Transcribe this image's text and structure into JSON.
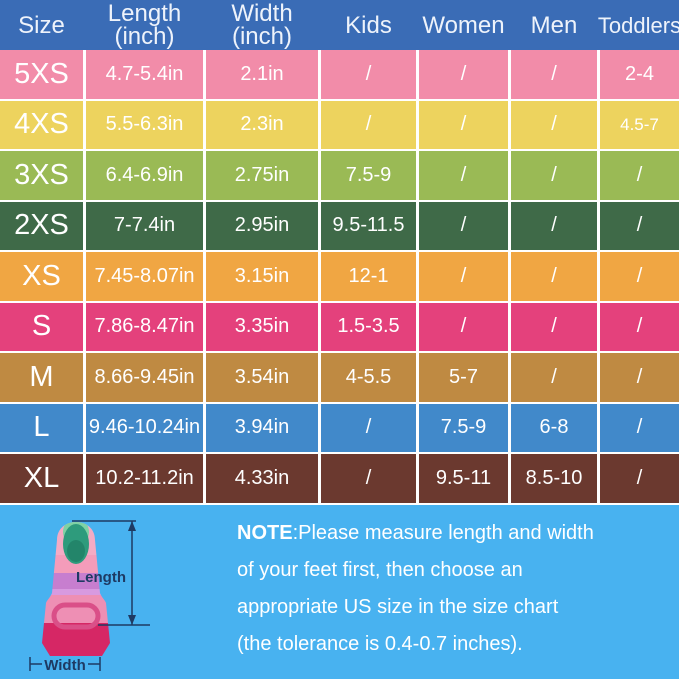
{
  "chart_data": {
    "type": "table",
    "columns": [
      "Size",
      "Length (inch)",
      "Width (inch)",
      "Kids",
      "Women",
      "Men",
      "Toddlers"
    ],
    "rows": [
      [
        "5XS",
        "4.7-5.4in",
        "2.1in",
        "/",
        "/",
        "/",
        "2-4"
      ],
      [
        "4XS",
        "5.5-6.3in",
        "2.3in",
        "/",
        "/",
        "/",
        "4.5-7"
      ],
      [
        "3XS",
        "6.4-6.9in",
        "2.75in",
        "7.5-9",
        "/",
        "/",
        "/"
      ],
      [
        "2XS",
        "7-7.4in",
        "2.95in",
        "9.5-11.5",
        "/",
        "/",
        "/"
      ],
      [
        "XS",
        "7.45-8.07in",
        "3.15in",
        "12-1",
        "/",
        "/",
        "/"
      ],
      [
        "S",
        "7.86-8.47in",
        "3.35in",
        "1.5-3.5",
        "/",
        "/",
        "/"
      ],
      [
        "M",
        "8.66-9.45in",
        "3.54in",
        "4-5.5",
        "5-7",
        "/",
        "/"
      ],
      [
        "L",
        "9.46-10.24in",
        "3.94in",
        "/",
        "7.5-9",
        "6-8",
        "/"
      ],
      [
        "XL",
        "10.2-11.2in",
        "4.33in",
        "/",
        "9.5-11",
        "8.5-10",
        "/"
      ]
    ],
    "note": "NOTE:Please measure length and width of your feet first, then choose an appropriate US size in the size chart (the tolerance is 0.4-0.7 inches)."
  },
  "table": {
    "header_bg": "#3a6cb6",
    "column_keys": [
      "size",
      "length",
      "width",
      "kids",
      "women",
      "men",
      "toddlers"
    ],
    "headers": [
      {
        "label": "Size"
      },
      {
        "label": "Length",
        "sub": "(inch)"
      },
      {
        "label": "Width",
        "sub": "(inch)"
      },
      {
        "label": "Kids"
      },
      {
        "label": "Women"
      },
      {
        "label": "Men"
      },
      {
        "label": "Toddlers"
      }
    ],
    "rows": [
      {
        "size": "5XS",
        "color": "#f28ca9",
        "cells": [
          "4.7-5.4in",
          "2.1in",
          "/",
          "/",
          "/",
          "2-4"
        ]
      },
      {
        "size": "4XS",
        "color": "#edd35e",
        "cells": [
          "5.5-6.3in",
          "2.3in",
          "/",
          "/",
          "/",
          "4.5-7"
        ]
      },
      {
        "size": "3XS",
        "color": "#9aba55",
        "cells": [
          "6.4-6.9in",
          "2.75in",
          "7.5-9",
          "/",
          "/",
          "/"
        ]
      },
      {
        "size": "2XS",
        "color": "#3f6a48",
        "cells": [
          "7-7.4in",
          "2.95in",
          "9.5-11.5",
          "/",
          "/",
          "/"
        ]
      },
      {
        "size": "XS",
        "color": "#f0a643",
        "cells": [
          "7.45-8.07in",
          "3.15in",
          "12-1",
          "/",
          "/",
          "/"
        ]
      },
      {
        "size": "S",
        "color": "#e4417c",
        "cells": [
          "7.86-8.47in",
          "3.35in",
          "1.5-3.5",
          "/",
          "/",
          "/"
        ]
      },
      {
        "size": "M",
        "color": "#bf8a42",
        "cells": [
          "8.66-9.45in",
          "3.54in",
          "4-5.5",
          "5-7",
          "/",
          "/"
        ]
      },
      {
        "size": "L",
        "color": "#4189ca",
        "cells": [
          "9.46-10.24in",
          "3.94in",
          "/",
          "7.5-9",
          "6-8",
          "/"
        ]
      },
      {
        "size": "XL",
        "color": "#6b392f",
        "cells": [
          "10.2-11.2in",
          "4.33in",
          "/",
          "9.5-11",
          "8.5-10",
          "/"
        ]
      }
    ]
  },
  "footer": {
    "bg": "#48b2f0",
    "note": {
      "bold": "NOTE",
      "lines": [
        ":Please measure length and width",
        "of your feet first, then choose an",
        "appropriate US size in the size chart",
        "(the tolerance is 0.4-0.7 inches)."
      ]
    }
  },
  "fin": {
    "length_label": "Length",
    "width_label": "Width",
    "dimension_line_color": "#1e3a63"
  }
}
